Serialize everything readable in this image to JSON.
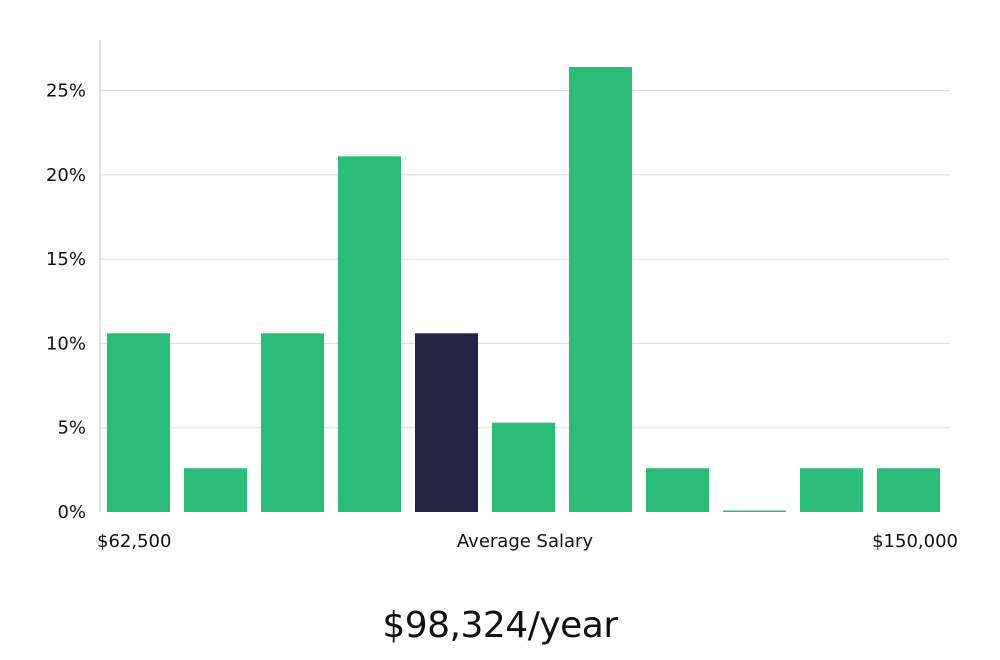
{
  "chart_data": {
    "type": "bar",
    "title": "",
    "xlabel": "Average Salary",
    "ylabel": "",
    "x_range_labels": [
      "$62,500",
      "$150,000"
    ],
    "ylim": [
      0,
      0.28
    ],
    "yticks": [
      0,
      0.05,
      0.1,
      0.15,
      0.2,
      0.25
    ],
    "ytick_labels": [
      "0%",
      "5%",
      "10%",
      "15%",
      "20%",
      "25%"
    ],
    "grid": true,
    "values": [
      0.106,
      0.026,
      0.106,
      0.211,
      0.106,
      0.053,
      0.264,
      0.026,
      0.0,
      0.026,
      0.026
    ],
    "highlight_index": 4,
    "colors": {
      "bar": "#2bbd77",
      "highlight": "#262445"
    }
  },
  "summary": {
    "salary_value": "$98,324/year"
  }
}
